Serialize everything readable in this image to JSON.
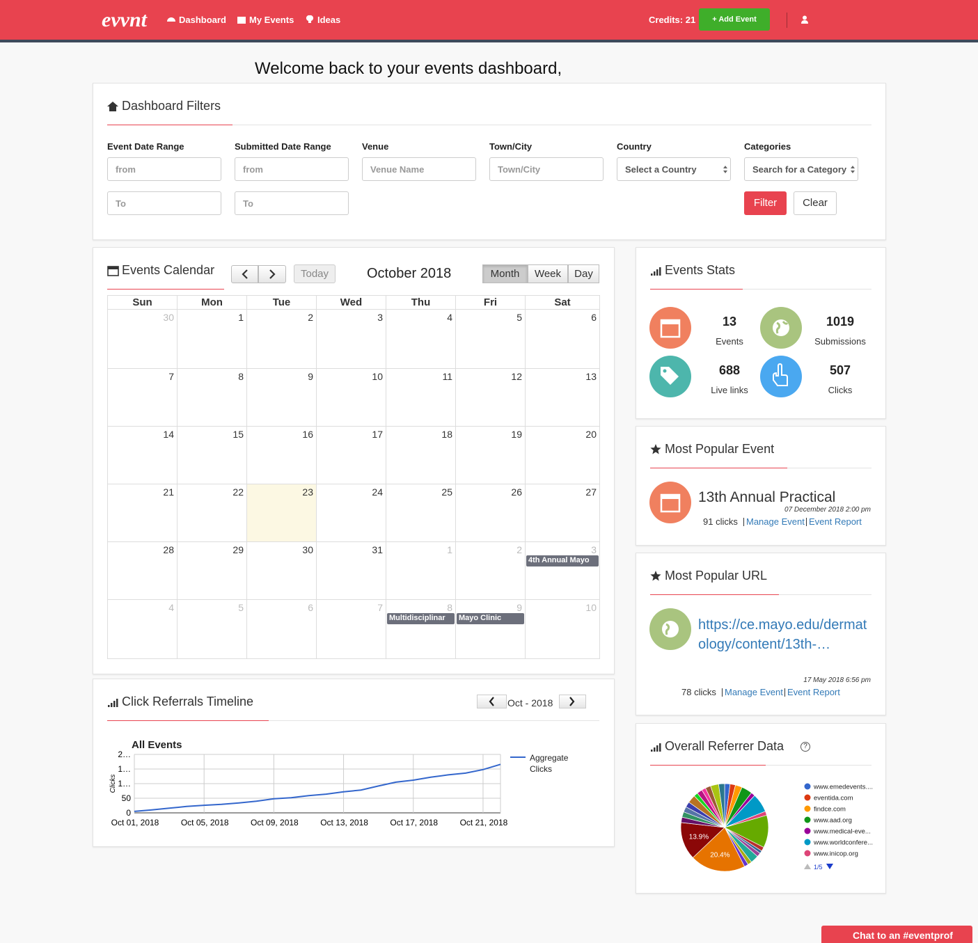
{
  "nav": {
    "logo": "evvnt",
    "links": [
      "Dashboard",
      "My Events",
      "Ideas"
    ],
    "credits": "Credits: 21",
    "add_event": "+ Add Event"
  },
  "welcome": "Welcome back to your events dashboard,",
  "filters": {
    "title": "Dashboard Filters",
    "fields": [
      {
        "label": "Event Date Range",
        "inputs": [
          "from",
          "To"
        ]
      },
      {
        "label": "Submitted Date Range",
        "inputs": [
          "from",
          "To"
        ]
      },
      {
        "label": "Venue",
        "inputs": [
          "Venue Name"
        ]
      },
      {
        "label": "Town/City",
        "inputs": [
          "Town/City"
        ]
      },
      {
        "label": "Country",
        "inputs": [
          "Select a Country"
        ],
        "kind": "select"
      },
      {
        "label": "Categories",
        "inputs": [
          "Search for a Category"
        ],
        "kind": "select"
      }
    ],
    "filter_button": "Filter",
    "clear_button": "Clear"
  },
  "calendar": {
    "title": "Events Calendar",
    "today_button": "Today",
    "month": "October 2018",
    "views": [
      "Month",
      "Week",
      "Day"
    ],
    "active_view": "Month",
    "weekdays": [
      "Sun",
      "Mon",
      "Tue",
      "Wed",
      "Thu",
      "Fri",
      "Sat"
    ],
    "weeks": [
      [
        {
          "day": 30
        },
        {
          "day": 1
        },
        {
          "day": 2
        },
        {
          "day": 3
        },
        {
          "day": 4
        },
        {
          "day": 5
        },
        {
          "day": 6
        }
      ],
      [
        {
          "day": 7
        },
        {
          "day": 8
        },
        {
          "day": 9
        },
        {
          "day": 10
        },
        {
          "day": 11
        },
        {
          "day": 12
        },
        {
          "day": 13
        }
      ],
      [
        {
          "day": 14
        },
        {
          "day": 15
        },
        {
          "day": 16
        },
        {
          "day": 17
        },
        {
          "day": 18
        },
        {
          "day": 19
        },
        {
          "day": 20
        }
      ],
      [
        {
          "day": 21
        },
        {
          "day": 22
        },
        {
          "day": 23
        },
        {
          "day": 24
        },
        {
          "day": 25
        },
        {
          "day": 26
        },
        {
          "day": 27
        }
      ],
      [
        {
          "day": 28
        },
        {
          "day": 29
        },
        {
          "day": 30
        },
        {
          "day": 31
        },
        {
          "day": 1
        },
        {
          "day": 2
        },
        {
          "day": 3,
          "events": [
            "4th Annual Mayo"
          ]
        }
      ],
      [
        {
          "day": 4
        },
        {
          "day": 5
        },
        {
          "day": 6
        },
        {
          "day": 7
        },
        {
          "day": 8,
          "events": [
            "Multidisciplinar"
          ]
        },
        {
          "day": 9,
          "events": [
            "Mayo Clinic"
          ]
        },
        {
          "day": 10
        }
      ]
    ],
    "highlight_day": 23
  },
  "stats": {
    "title": "Events Stats",
    "items": [
      {
        "value": 13,
        "label": "Events",
        "color": "#f0805f"
      },
      {
        "value": 1019,
        "label": "Submissions",
        "color": "#a9c47f"
      },
      {
        "value": 688,
        "label": "Live links",
        "color": "#4db6ac"
      },
      {
        "value": 507,
        "label": "Clicks",
        "color": "#4aa8f0"
      }
    ]
  },
  "popular_event": {
    "title": "Most Popular Event",
    "name": "13th Annual Practical",
    "date": "07 December 2018 2:00 pm",
    "clicks": "91 clicks",
    "links": [
      "Manage Event",
      "Event Report"
    ]
  },
  "popular_url": {
    "title": "Most Popular URL",
    "url": "https://ce.mayo.edu/dermatology/content/13th-…",
    "date": "17 May 2018 6:56 pm",
    "clicks": "78 clicks",
    "links": [
      "Manage Event",
      "Event Report"
    ]
  },
  "timeline": {
    "title": "Click Referrals Timeline",
    "period": "Oct - 2018"
  },
  "referrers": {
    "title": "Overall Referrer Data",
    "help": "?"
  },
  "chat": "Chat to an #eventprof",
  "chart_data": [
    {
      "type": "line",
      "title": "All Events",
      "y_label": "Clicks",
      "x": [
        "2018-10-01",
        "2018-10-02",
        "2018-10-03",
        "2018-10-04",
        "2018-10-05",
        "2018-10-06",
        "2018-10-07",
        "2018-10-08",
        "2018-10-09",
        "2018-10-10",
        "2018-10-11",
        "2018-10-12",
        "2018-10-13",
        "2018-10-14",
        "2018-10-15",
        "2018-10-16",
        "2018-10-17",
        "2018-10-18",
        "2018-10-19",
        "2018-10-20",
        "2018-10-21",
        "2018-10-22"
      ],
      "xlim": [
        "2018-10-01",
        "2018-10-22"
      ],
      "xticks": [
        {
          "value": "2018-10-01",
          "label": "Oct 01, 2018"
        },
        {
          "value": "2018-10-05",
          "label": "Oct 05, 2018"
        },
        {
          "value": "2018-10-09",
          "label": "Oct 09, 2018"
        },
        {
          "value": "2018-10-13",
          "label": "Oct 13, 2018"
        },
        {
          "value": "2018-10-17",
          "label": "Oct 17, 2018"
        },
        {
          "value": "2018-10-21",
          "label": "Oct 21, 2018"
        }
      ],
      "ylim": [
        0,
        200
      ],
      "yticks": [
        {
          "value": 200,
          "label": "2…"
        },
        {
          "value": 150,
          "label": "1…"
        },
        {
          "value": 100,
          "label": "1…"
        },
        50,
        0
      ],
      "grid": true,
      "series": [
        {
          "name": "Aggregate Clicks",
          "color": "#3366cc",
          "values": [
            5,
            10,
            16,
            22,
            26,
            29,
            34,
            40,
            48,
            52,
            59,
            64,
            72,
            78,
            92,
            105,
            112,
            122,
            130,
            136,
            148,
            166
          ]
        }
      ]
    },
    {
      "type": "pie",
      "categories": [
        "www.emedevents....",
        "eventida.com",
        "findce.com",
        "www.aad.org",
        "www.medical-eve...",
        "www.worldconfere...",
        "www.inicop.org",
        null,
        null,
        null,
        null,
        null,
        null,
        null,
        null,
        null,
        null,
        null,
        null,
        null,
        null,
        null,
        null,
        null,
        null,
        null,
        null
      ],
      "values": [
        2,
        2,
        2.5,
        4,
        1.5,
        7,
        1.5,
        12,
        1.5,
        1,
        1.5,
        3,
        1.5,
        1.5,
        20.4,
        13.9,
        2,
        2,
        2,
        2,
        3,
        1.5,
        2,
        1.5,
        2,
        3,
        2.2
      ],
      "value_labels": [
        null,
        null,
        null,
        null,
        null,
        null,
        null,
        null,
        null,
        null,
        null,
        null,
        null,
        null,
        "20.4%",
        "13.9%",
        null,
        null,
        null,
        null,
        null,
        null,
        null,
        null,
        null,
        null,
        null
      ],
      "colors": [
        "#3366cc",
        "#dc3912",
        "#ff9900",
        "#109618",
        "#990099",
        "#0099c6",
        "#dd4477",
        "#66aa00",
        "#b82e2e",
        "#316395",
        "#994499",
        "#22aa99",
        "#aaaa11",
        "#6633cc",
        "#e67300",
        "#8b0707",
        "#651067",
        "#329262",
        "#5574a6",
        "#3b3eac",
        "#b77322",
        "#16d620",
        "#b91383",
        "#f4359e",
        "#9c5935",
        "#a9c413",
        "#2a778d"
      ],
      "legend_page": "1/5"
    }
  ]
}
